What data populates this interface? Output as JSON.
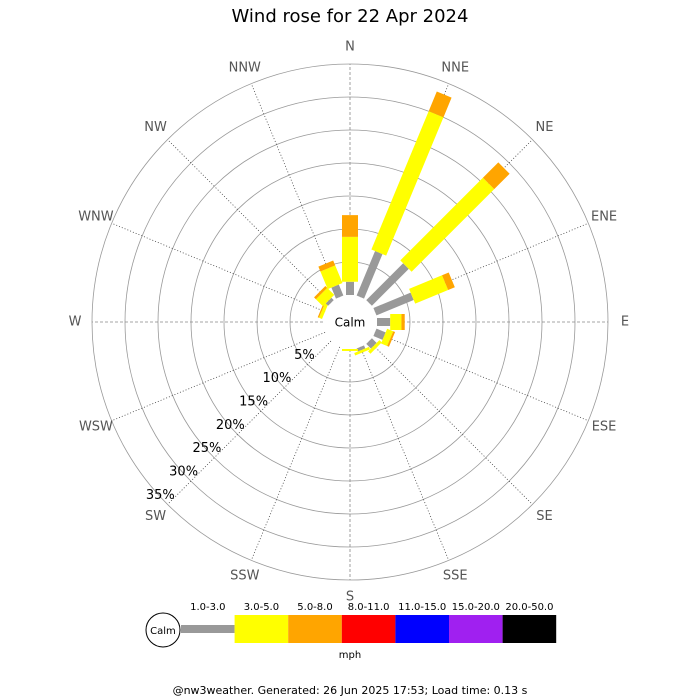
{
  "chart_data": {
    "type": "windrose",
    "title": "Wind rose for 22 Apr 2024",
    "categories": [
      "N",
      "NNE",
      "NE",
      "ENE",
      "E",
      "ESE",
      "SE",
      "SSE",
      "S",
      "SSW",
      "SW",
      "WSW",
      "W",
      "WNW",
      "NW",
      "NNW"
    ],
    "calm_label": "Calm",
    "series": [
      {
        "name": "1.0-3.0",
        "color": "#999999",
        "values": [
          2,
          7.3,
          7.9,
          6.1,
          2,
          1.5,
          1,
          0.5,
          0,
          0,
          0,
          0,
          0,
          0,
          0.5,
          1.8
        ]
      },
      {
        "name": "3.0-5.0",
        "color": "#ffff00",
        "values": [
          6.8,
          22.7,
          17.7,
          5.4,
          1.7,
          1,
          0.5,
          0.4,
          0.3,
          0,
          0,
          0,
          0,
          0.5,
          1.5,
          2.9
        ]
      },
      {
        "name": "5.0-8.0",
        "color": "#ffa500",
        "values": [
          3.3,
          3.2,
          3.3,
          1.1,
          0.5,
          0.3,
          0,
          0,
          0,
          0,
          0,
          0,
          0,
          0.2,
          0.4,
          0.8
        ]
      },
      {
        "name": "8.0-11.0",
        "color": "#ff0000",
        "values": [
          0,
          0,
          0,
          0,
          0,
          0,
          0,
          0,
          0,
          0,
          0,
          0,
          0,
          0,
          0,
          0
        ]
      },
      {
        "name": "11.0-15.0",
        "color": "#0000ff",
        "values": [
          0,
          0,
          0,
          0,
          0,
          0,
          0,
          0,
          0,
          0,
          0,
          0,
          0,
          0,
          0,
          0
        ]
      },
      {
        "name": "15.0-20.0",
        "color": "#a020f0",
        "values": [
          0,
          0,
          0,
          0,
          0,
          0,
          0,
          0,
          0,
          0,
          0,
          0,
          0,
          0,
          0,
          0
        ]
      },
      {
        "name": "20.0-50.0",
        "color": "#000000",
        "values": [
          0,
          0,
          0,
          0,
          0,
          0,
          0,
          0,
          0,
          0,
          0,
          0,
          0,
          0,
          0,
          0
        ]
      }
    ],
    "unit_label": "mph",
    "rlim": [
      0,
      35
    ],
    "rticks": [
      {
        "value": 5,
        "label": "5%"
      },
      {
        "value": 10,
        "label": "10%"
      },
      {
        "value": 15,
        "label": "15%"
      },
      {
        "value": 20,
        "label": "20%"
      },
      {
        "value": 25,
        "label": "25%"
      },
      {
        "value": 30,
        "label": "30%"
      },
      {
        "value": 35,
        "label": "35%"
      }
    ],
    "footer": "@nw3weather. Generated: 26 Jun 2025 17:53; Load time: 0.13 s"
  }
}
